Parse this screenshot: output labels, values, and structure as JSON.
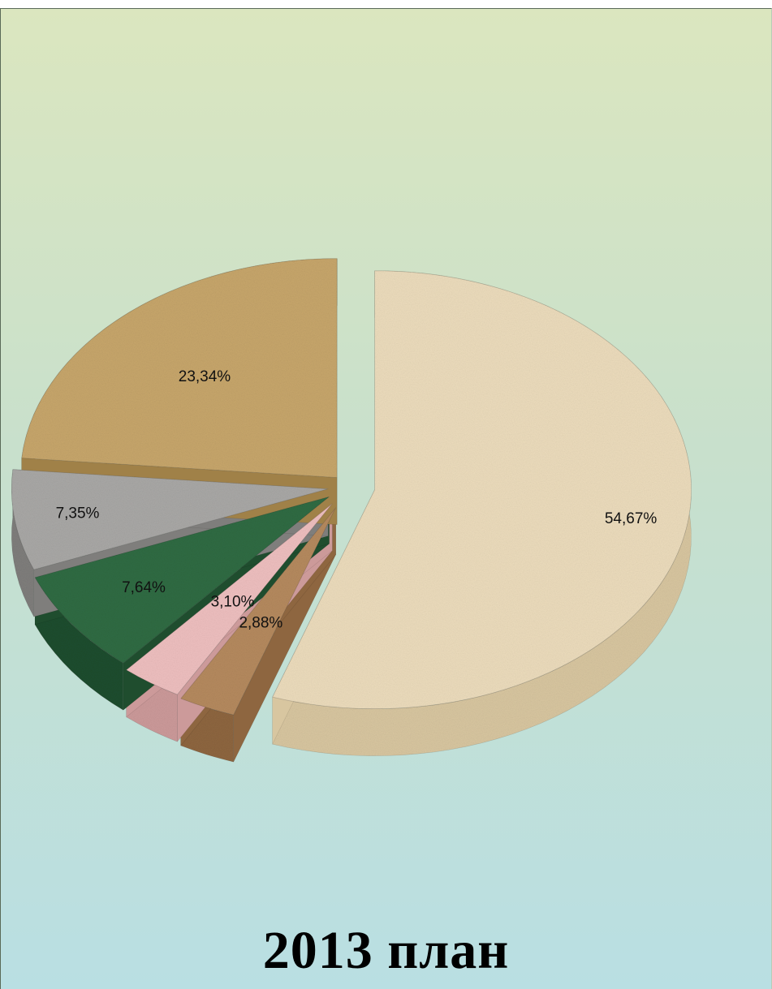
{
  "chart_data": {
    "type": "pie",
    "title": "2013 план",
    "slices": [
      {
        "label": "54,67%",
        "value": 54.67,
        "color": "#ecdcbc",
        "side": "#d8c6a0"
      },
      {
        "label": "2,88%",
        "value": 2.88,
        "color": "#b58a5e",
        "side": "#8e6640"
      },
      {
        "label": "3,10%",
        "value": 3.1,
        "color": "#eebfbf",
        "side": "#cc9a9a"
      },
      {
        "label": "7,64%",
        "value": 7.64,
        "color": "#2f6b43",
        "side": "#1f4d2e"
      },
      {
        "label": "7,35%",
        "value": 7.35,
        "color": "#a9a8a6",
        "side": "#7f7e7c"
      },
      {
        "label": "23,34%",
        "value": 23.34,
        "color": "#c7a66b",
        "side": "#a08148"
      }
    ]
  }
}
